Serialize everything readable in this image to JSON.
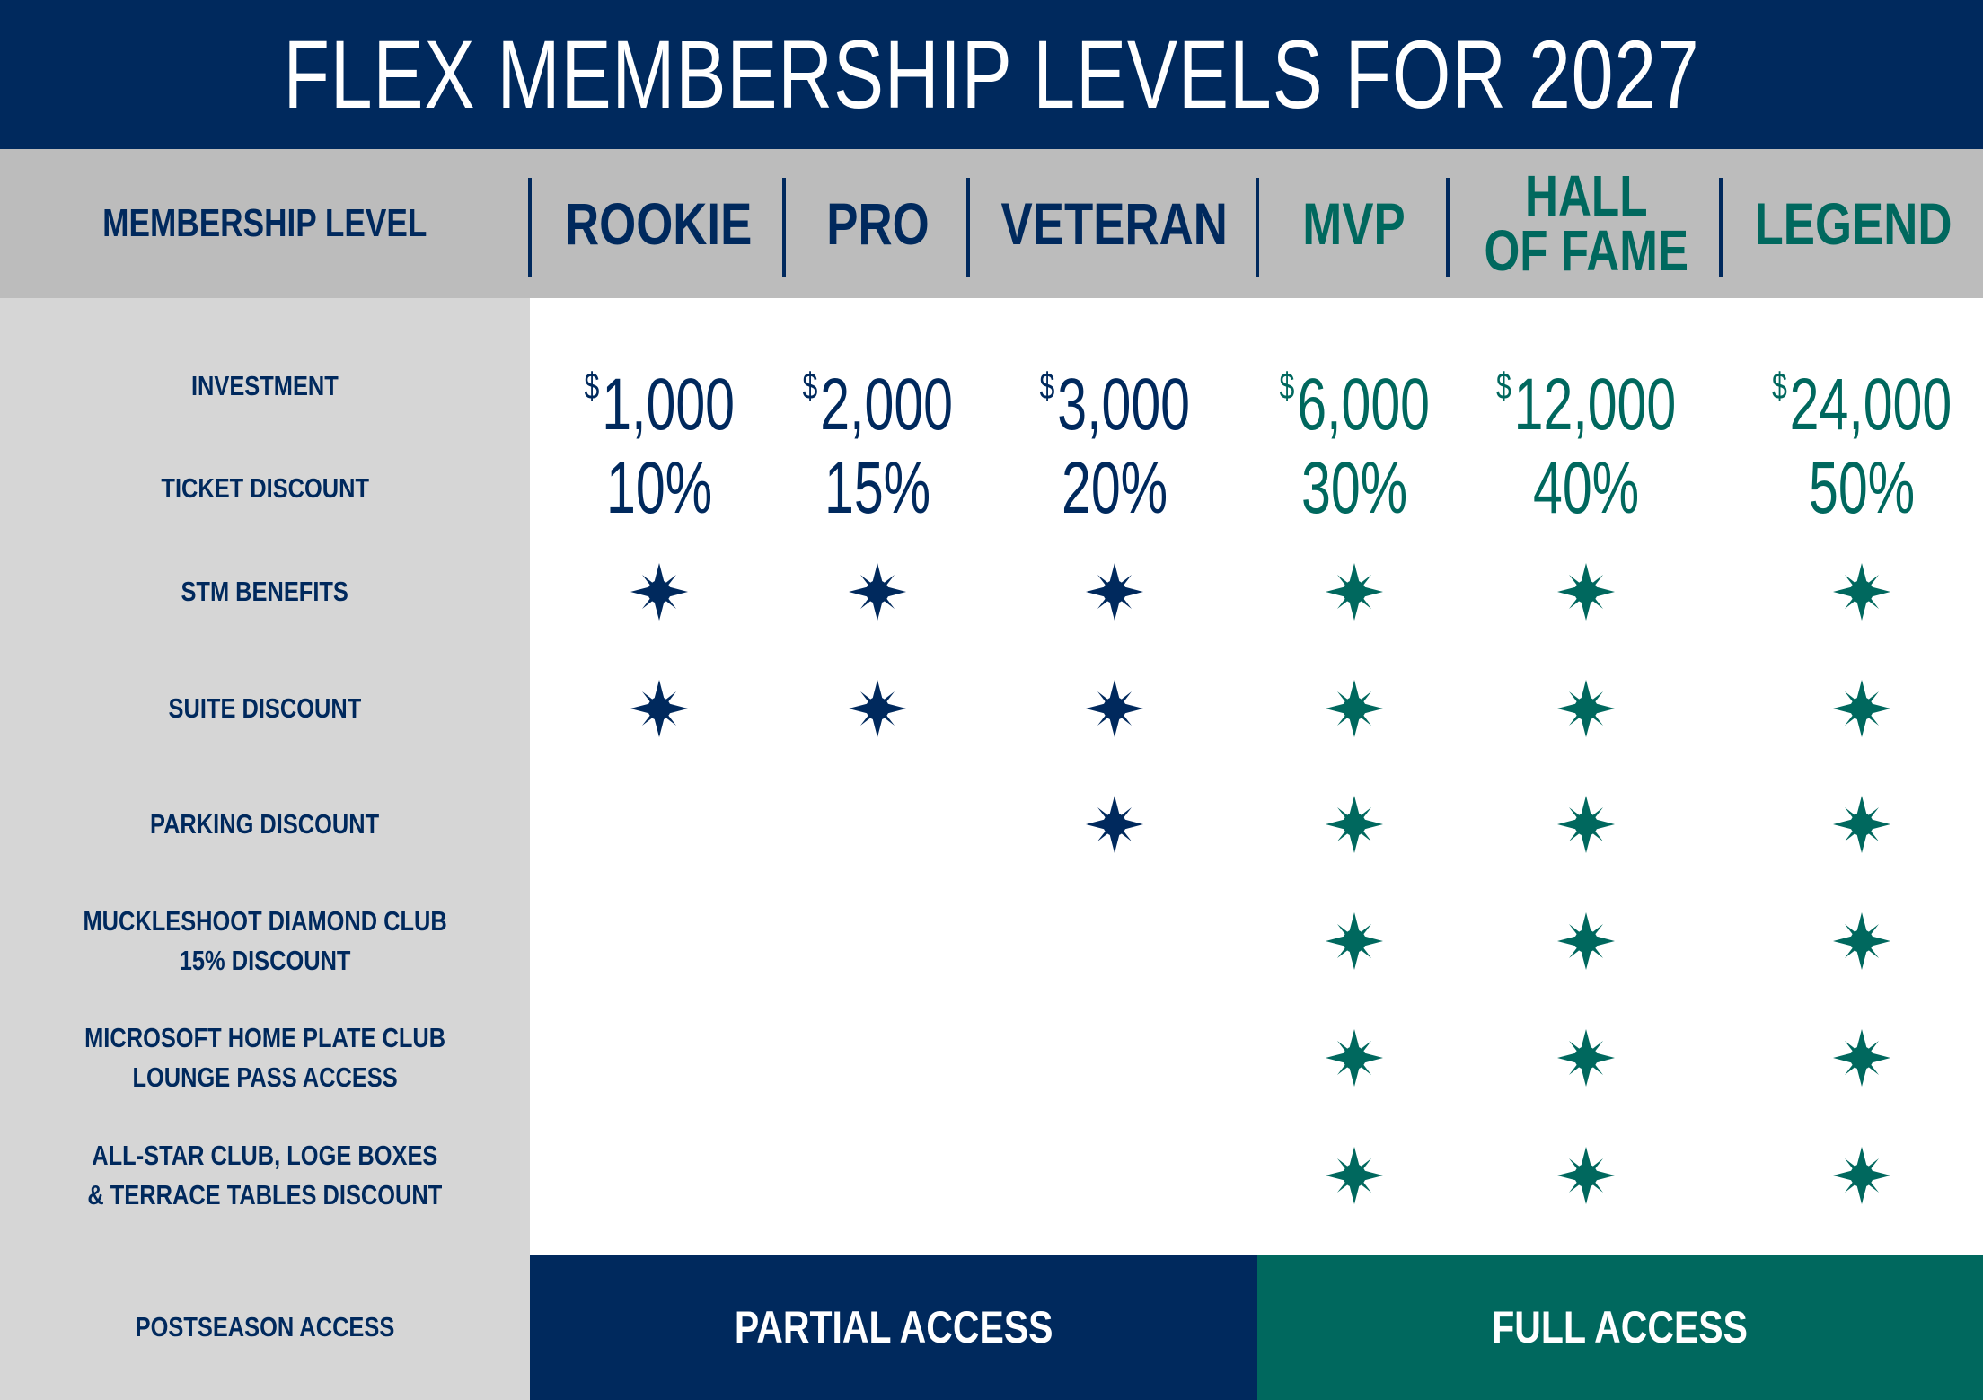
{
  "title": "FLEX MEMBERSHIP LEVELS FOR 2027",
  "colors": {
    "navy": "#00295d",
    "teal": "#00685e",
    "header_gray": "#bcbcbc",
    "label_gray": "#d6d6d6"
  },
  "header_label": "MEMBERSHIP LEVEL",
  "tiers": [
    {
      "name": "ROOKIE",
      "color": "navy",
      "investment": "1,000",
      "ticket_discount": "10%"
    },
    {
      "name": "PRO",
      "color": "navy",
      "investment": "2,000",
      "ticket_discount": "15%"
    },
    {
      "name": "VETERAN",
      "color": "navy",
      "investment": "3,000",
      "ticket_discount": "20%"
    },
    {
      "name": "MVP",
      "color": "teal",
      "investment": "6,000",
      "ticket_discount": "30%"
    },
    {
      "name": "HALL\nOF FAME",
      "color": "teal",
      "investment": "12,000",
      "ticket_discount": "40%"
    },
    {
      "name": "LEGEND",
      "color": "teal",
      "investment": "24,000",
      "ticket_discount": "50%"
    }
  ],
  "currency_symbol": "$",
  "rows": {
    "investment": "INVESTMENT",
    "ticket_discount": "TICKET DISCOUNT",
    "benefits": [
      {
        "label": "STM BENEFITS",
        "included": [
          true,
          true,
          true,
          true,
          true,
          true
        ]
      },
      {
        "label": "SUITE DISCOUNT",
        "included": [
          true,
          true,
          true,
          true,
          true,
          true
        ]
      },
      {
        "label": "PARKING DISCOUNT",
        "included": [
          false,
          false,
          true,
          true,
          true,
          true
        ]
      },
      {
        "label": "MUCKLESHOOT DIAMOND CLUB\n15% DISCOUNT",
        "included": [
          false,
          false,
          false,
          true,
          true,
          true
        ]
      },
      {
        "label": "MICROSOFT HOME PLATE CLUB\nLOUNGE PASS ACCESS",
        "included": [
          false,
          false,
          false,
          true,
          true,
          true
        ]
      },
      {
        "label": "ALL-STAR CLUB, LOGE BOXES\n& TERRACE TABLES DISCOUNT",
        "included": [
          false,
          false,
          false,
          true,
          true,
          true
        ]
      }
    ],
    "postseason": "POSTSEASON ACCESS"
  },
  "postseason_access": {
    "partial": "PARTIAL ACCESS",
    "full": "FULL ACCESS"
  },
  "icon": "compass-star-icon"
}
